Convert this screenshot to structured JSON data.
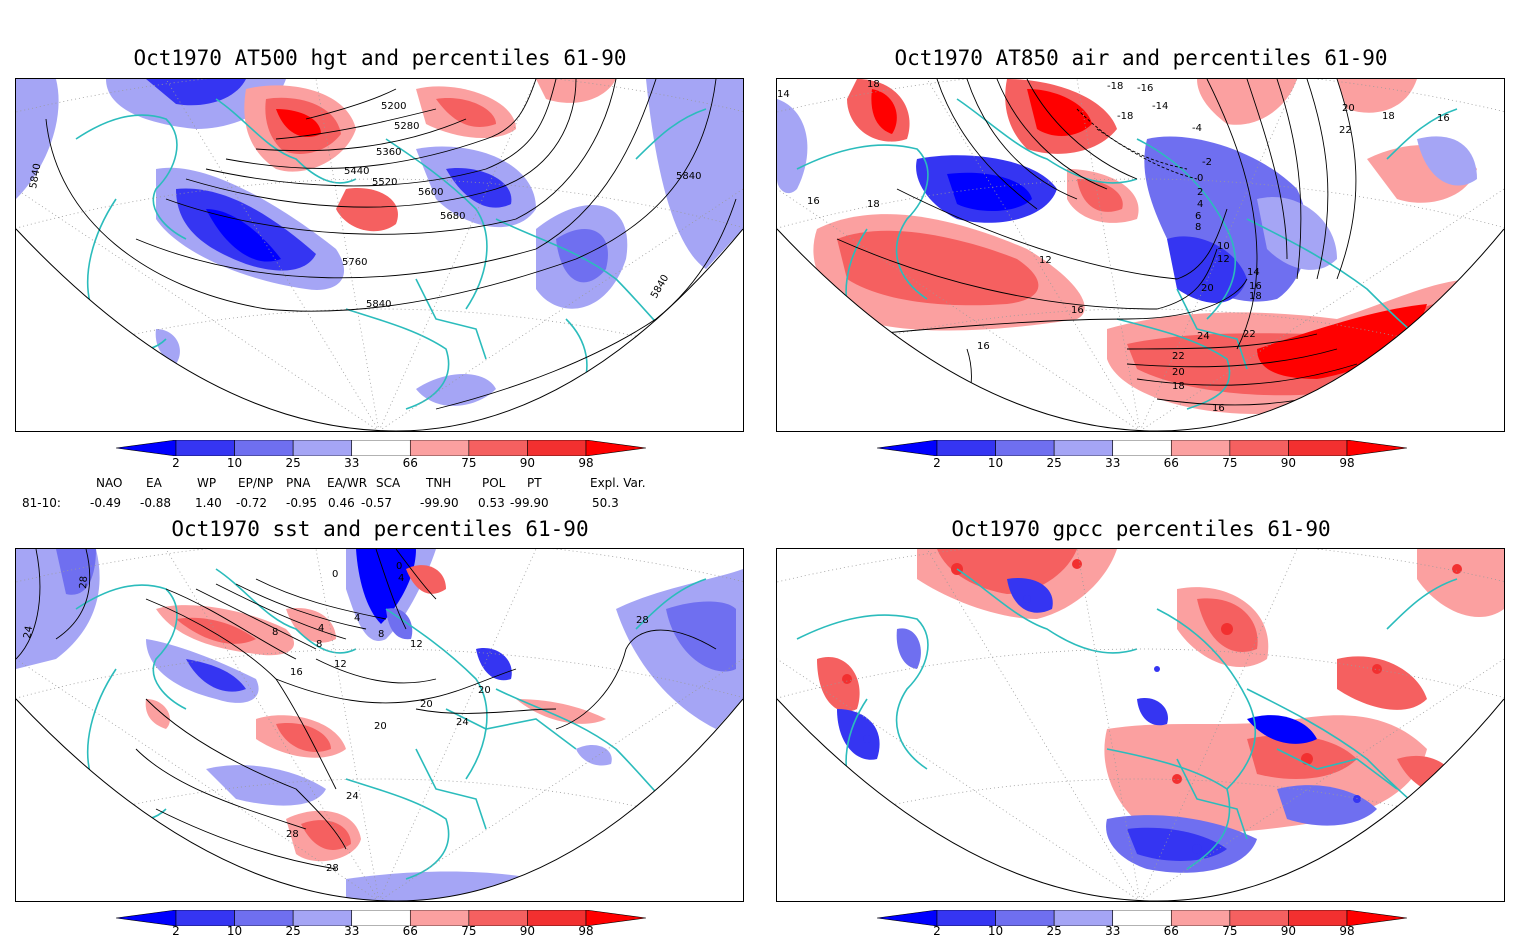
{
  "panels": [
    {
      "id": "hgt",
      "title": "Oct1970 AT500 hgt and percentiles 61-90",
      "contour_labels": [
        "5200",
        "5280",
        "5360",
        "5440",
        "5520",
        "5600",
        "5680",
        "5760",
        "5840",
        "5840",
        "5840",
        "5840"
      ]
    },
    {
      "id": "air",
      "title": "Oct1970 AT850 air and percentiles 61-90",
      "contour_labels": [
        "18",
        "14",
        "-18",
        "-16",
        "-18",
        "-14",
        "-4",
        "20",
        "22",
        "18",
        "16",
        "18",
        "16",
        "-2",
        "0",
        "2",
        "4",
        "6",
        "8",
        "10",
        "12",
        "14",
        "16",
        "18",
        "20",
        "12",
        "16",
        "24",
        "22",
        "22",
        "20",
        "18",
        "16",
        "16"
      ]
    },
    {
      "id": "sst",
      "title": "Oct1970 sst and percentiles 61-90",
      "contour_labels": [
        "28",
        "24",
        "0",
        "4",
        "8",
        "8",
        "12",
        "16",
        "20",
        "24",
        "28",
        "28",
        "20",
        "20",
        "24",
        "28",
        "4",
        "0",
        "8",
        "4",
        "12"
      ]
    },
    {
      "id": "gpcc",
      "title": "Oct1970 gpcc percentiles 61-90",
      "contour_labels": []
    }
  ],
  "colorbar": {
    "labels": [
      "2",
      "10",
      "25",
      "33",
      "66",
      "75",
      "90",
      "98"
    ],
    "colors": [
      "#0000ff",
      "#3535f2",
      "#6f6ff0",
      "#a5a5f5",
      "#ffffff",
      "#fba0a0",
      "#f56060",
      "#f23030",
      "#ff0000"
    ]
  },
  "indices": {
    "headers": [
      "NAO",
      "EA",
      "WP",
      "EP/NP",
      "PNA",
      "EA/WR",
      "SCA",
      "TNH",
      "POL",
      "PT",
      "Expl. Var."
    ],
    "row_label": "81-10:",
    "values": [
      "-0.49",
      "-0.88",
      "1.40",
      "-0.72",
      "-0.95",
      "0.46",
      "-0.57",
      "-99.90",
      "0.53",
      "-99.90",
      "50.3"
    ]
  },
  "colors": {
    "coast": "#2bbcbc",
    "grid": "#9a9a9a",
    "contour": "#000000"
  }
}
